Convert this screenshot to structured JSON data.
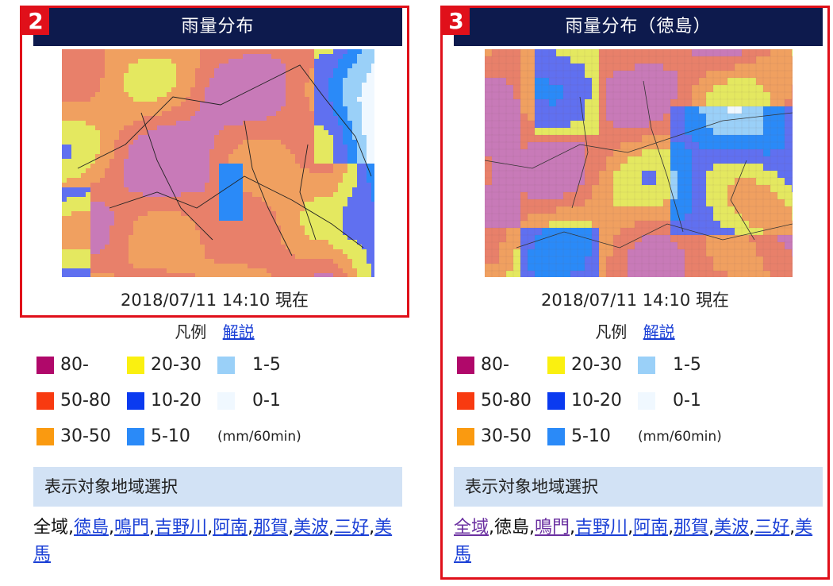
{
  "panels": [
    {
      "badge": "2",
      "title": "雨量分布",
      "timestamp": "2018/07/11 14:10 現在",
      "legend_label": "凡例",
      "legend_link": "解説",
      "legend": [
        {
          "label": "80-",
          "color": "#b0086a"
        },
        {
          "label": "50-80",
          "color": "#f83a10"
        },
        {
          "label": "30-50",
          "color": "#fa9a10"
        },
        {
          "label": "20-30",
          "color": "#faf010"
        },
        {
          "label": "10-20",
          "color": "#0a3af0"
        },
        {
          "label": "5-10",
          "color": "#2a8af8"
        },
        {
          "label": "1-5",
          "color": "#9ad0f8"
        },
        {
          "label": "0-1",
          "color": "#f0f8ff"
        }
      ],
      "unit": "(mm/60min)",
      "region_header": "表示対象地域選択",
      "regions": [
        {
          "label": "全域",
          "link": false
        },
        {
          "label": "徳島",
          "link": true
        },
        {
          "label": "鳴門",
          "link": true
        },
        {
          "label": "吉野川",
          "link": true
        },
        {
          "label": "阿南",
          "link": true
        },
        {
          "label": "那賀",
          "link": true
        },
        {
          "label": "美波",
          "link": true
        },
        {
          "label": "三好",
          "link": true
        },
        {
          "label": "美馬",
          "link": true
        }
      ]
    },
    {
      "badge": "3",
      "title": "雨量分布（徳島）",
      "timestamp": "2018/07/11 14:10 現在",
      "legend_label": "凡例",
      "legend_link": "解説",
      "legend": [
        {
          "label": "80-",
          "color": "#b0086a"
        },
        {
          "label": "50-80",
          "color": "#f83a10"
        },
        {
          "label": "30-50",
          "color": "#fa9a10"
        },
        {
          "label": "20-30",
          "color": "#faf010"
        },
        {
          "label": "10-20",
          "color": "#0a3af0"
        },
        {
          "label": "5-10",
          "color": "#2a8af8"
        },
        {
          "label": "1-5",
          "color": "#9ad0f8"
        },
        {
          "label": "0-1",
          "color": "#f0f8ff"
        }
      ],
      "unit": "(mm/60min)",
      "region_header": "表示対象地域選択",
      "regions": [
        {
          "label": "全域",
          "link": true,
          "visited": true
        },
        {
          "label": "徳島",
          "link": false
        },
        {
          "label": "鳴門",
          "link": true,
          "visited": true
        },
        {
          "label": "吉野川",
          "link": true
        },
        {
          "label": "阿南",
          "link": true
        },
        {
          "label": "那賀",
          "link": true
        },
        {
          "label": "美波",
          "link": true
        },
        {
          "label": "三好",
          "link": true
        },
        {
          "label": "美馬",
          "link": true
        }
      ]
    }
  ]
}
